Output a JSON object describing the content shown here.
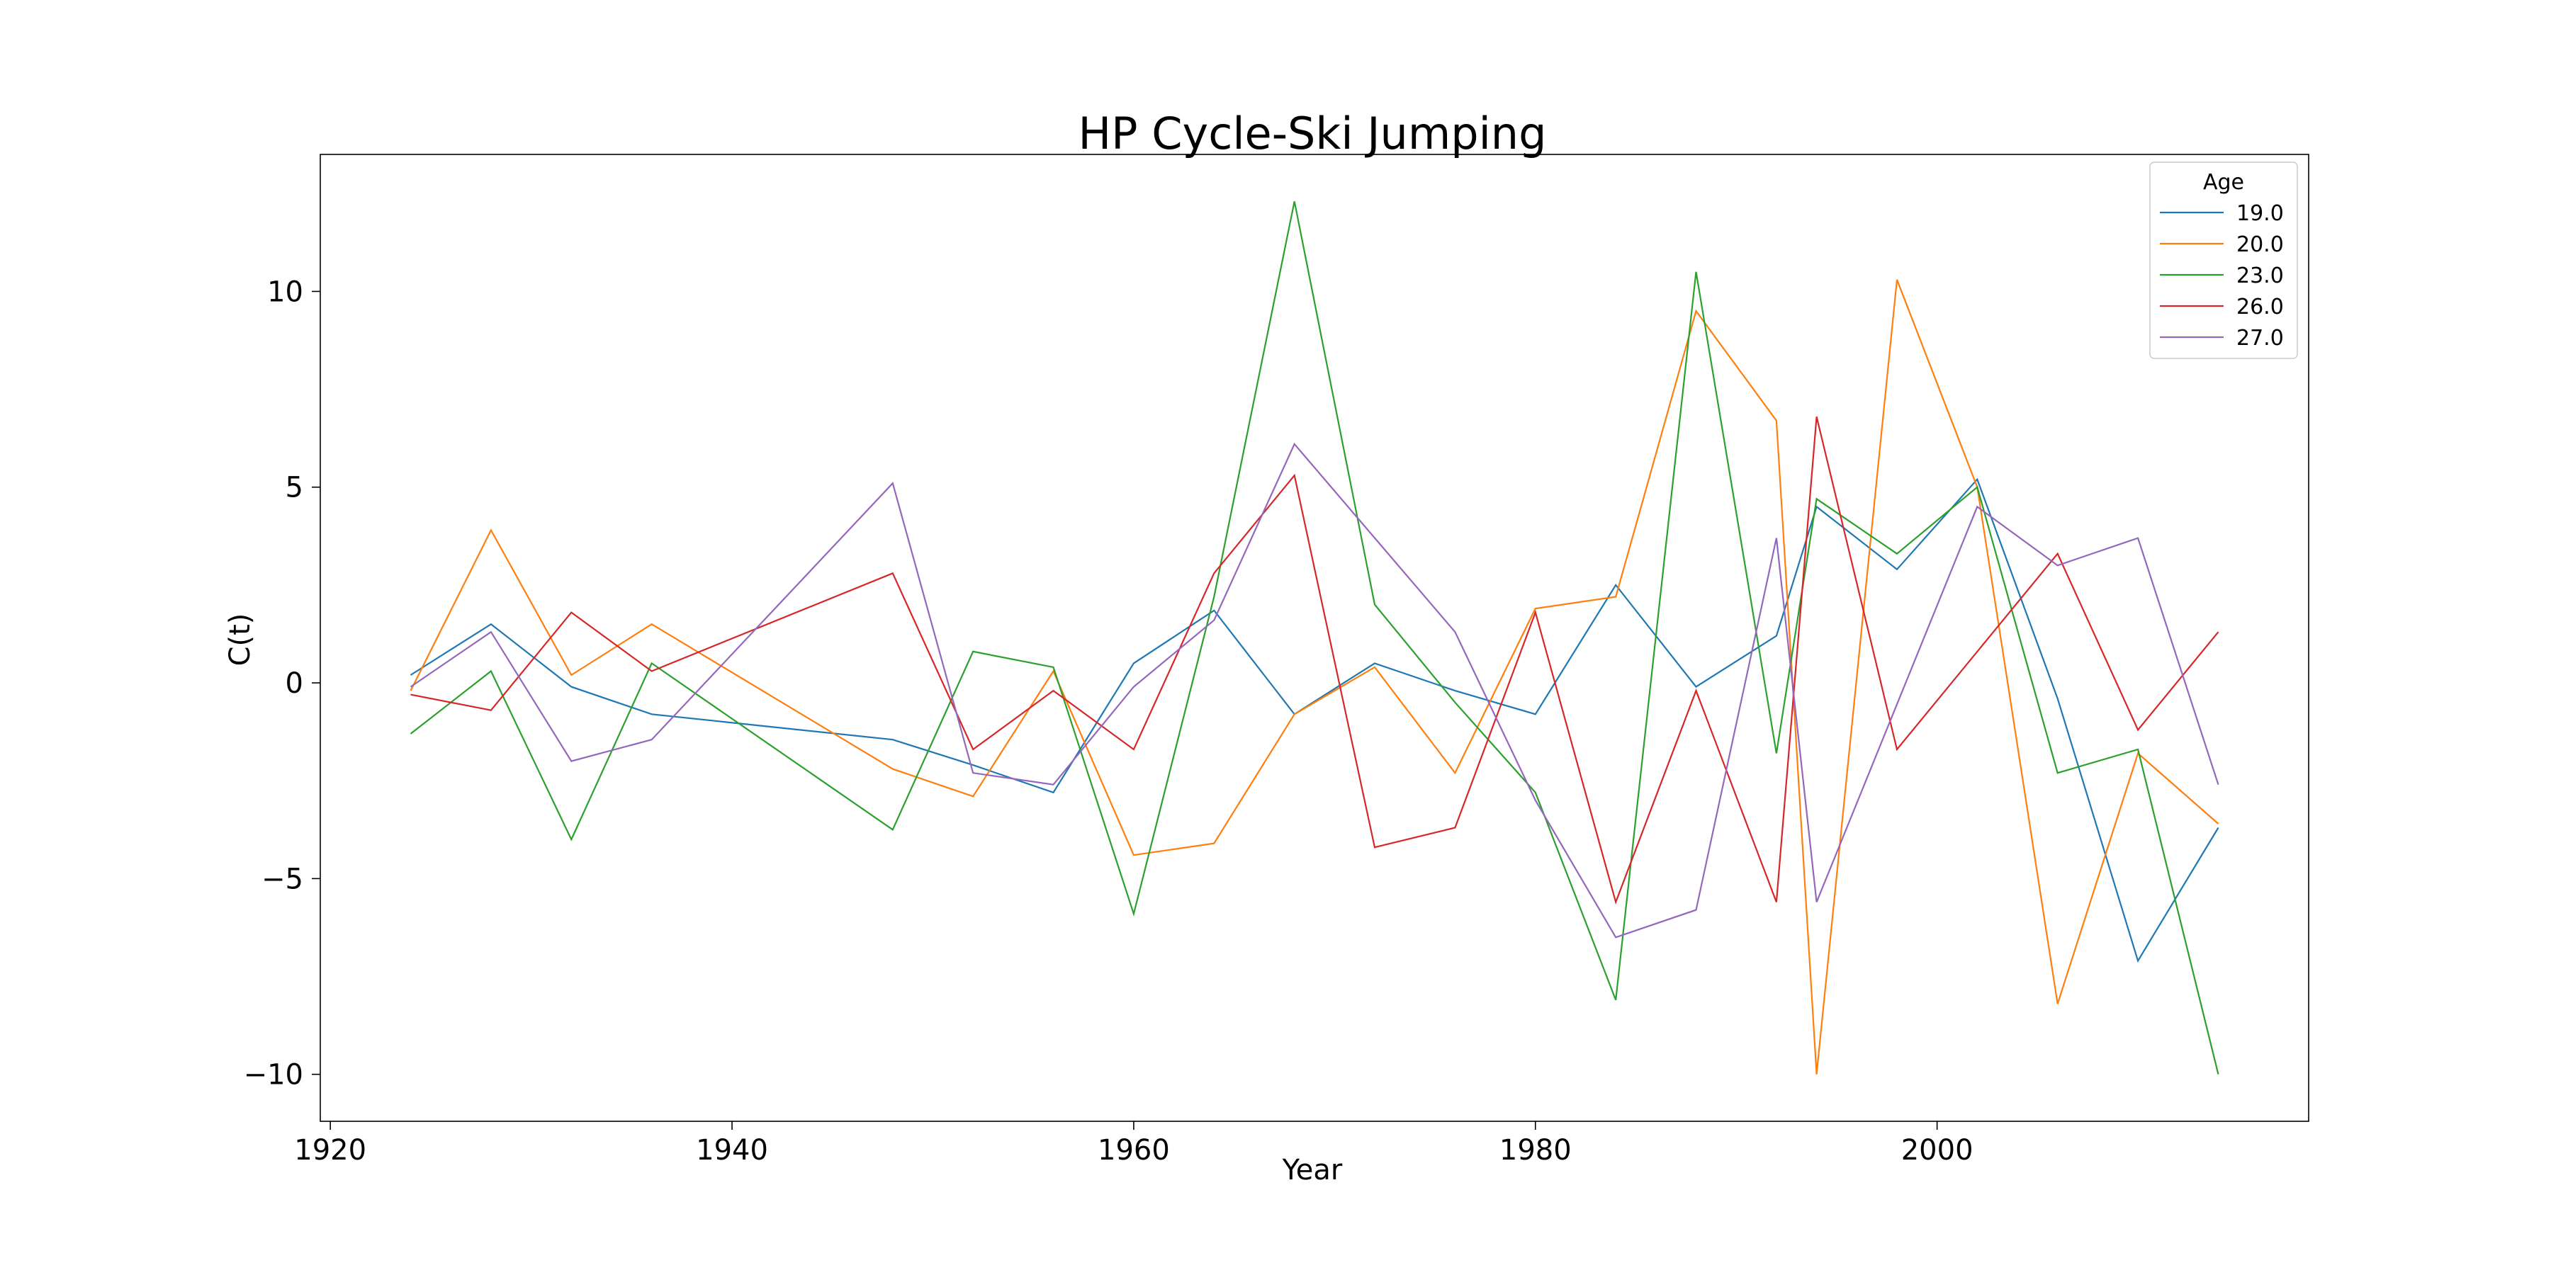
{
  "chart_data": {
    "type": "line",
    "title": "HP Cycle-Ski Jumping",
    "xlabel": "Year",
    "ylabel": "C(t)",
    "xlim": [
      1919.5,
      2018.5
    ],
    "ylim": [
      -11.2,
      13.5
    ],
    "xticks": [
      1920,
      1940,
      1960,
      1980,
      2000
    ],
    "yticks": [
      -10,
      -5,
      0,
      5,
      10
    ],
    "ytick_labels": [
      "−10",
      "−5",
      "0",
      "5",
      "10"
    ],
    "grid": false,
    "legend": {
      "title": "Age",
      "position": "top-right"
    },
    "series": [
      {
        "name": "19.0",
        "color": "#1f77b4",
        "x": [
          1924,
          1928,
          1932,
          1936,
          1948,
          1952,
          1956,
          1960,
          1964,
          1968,
          1972,
          1976,
          1980,
          1984,
          1988,
          1992,
          1994,
          1998,
          2002,
          2006,
          2010,
          2014
        ],
        "y": [
          0.2,
          1.5,
          -0.1,
          -0.8,
          -1.45,
          -2.1,
          -2.8,
          0.5,
          1.85,
          -0.8,
          0.5,
          -0.2,
          -0.8,
          2.5,
          -0.1,
          1.2,
          4.5,
          2.9,
          5.2,
          -0.4,
          -7.1,
          -3.7
        ]
      },
      {
        "name": "20.0",
        "color": "#ff7f0e",
        "x": [
          1924,
          1928,
          1932,
          1936,
          1948,
          1952,
          1956,
          1960,
          1964,
          1968,
          1972,
          1976,
          1980,
          1984,
          1988,
          1992,
          1994,
          1998,
          2002,
          2006,
          2010,
          2014
        ],
        "y": [
          -0.2,
          3.9,
          0.2,
          1.5,
          -2.2,
          -2.9,
          0.3,
          -4.4,
          -4.1,
          -0.8,
          0.4,
          -2.3,
          1.9,
          2.2,
          9.5,
          6.7,
          -10.0,
          10.3,
          5.0,
          -8.2,
          -1.8,
          -3.6
        ]
      },
      {
        "name": "23.0",
        "color": "#2ca02c",
        "x": [
          1924,
          1928,
          1932,
          1936,
          1948,
          1952,
          1956,
          1960,
          1964,
          1968,
          1972,
          1976,
          1980,
          1984,
          1988,
          1992,
          1994,
          1998,
          2002,
          2006,
          2010,
          2014
        ],
        "y": [
          -1.3,
          0.3,
          -4.0,
          0.5,
          -3.75,
          0.8,
          0.4,
          -5.9,
          2.2,
          12.3,
          2.0,
          -0.5,
          -2.8,
          -8.1,
          10.5,
          -1.8,
          4.7,
          3.3,
          5.0,
          -2.3,
          -1.7,
          -10.0
        ]
      },
      {
        "name": "26.0",
        "color": "#d62728",
        "x": [
          1924,
          1928,
          1932,
          1936,
          1948,
          1952,
          1956,
          1960,
          1964,
          1968,
          1972,
          1976,
          1980,
          1984,
          1988,
          1992,
          1994,
          1998,
          2006,
          2010,
          2014
        ],
        "y": [
          -0.3,
          -0.7,
          1.8,
          0.3,
          2.8,
          -1.7,
          -0.2,
          -1.7,
          2.8,
          5.3,
          -4.2,
          -3.7,
          1.8,
          -5.6,
          -0.2,
          -5.6,
          6.8,
          -1.7,
          3.3,
          -1.2,
          1.3
        ]
      },
      {
        "name": "27.0",
        "color": "#9467bd",
        "x": [
          1924,
          1928,
          1932,
          1936,
          1948,
          1952,
          1956,
          1960,
          1964,
          1968,
          1976,
          1980,
          1984,
          1988,
          1992,
          1994,
          2002,
          2006,
          2010,
          2014
        ],
        "y": [
          -0.1,
          1.3,
          -2.0,
          -1.45,
          5.1,
          -2.3,
          -2.6,
          -0.1,
          1.6,
          6.1,
          1.3,
          -3.0,
          -6.5,
          -5.8,
          3.7,
          -5.6,
          4.5,
          3.0,
          3.7,
          -2.6
        ]
      }
    ]
  }
}
